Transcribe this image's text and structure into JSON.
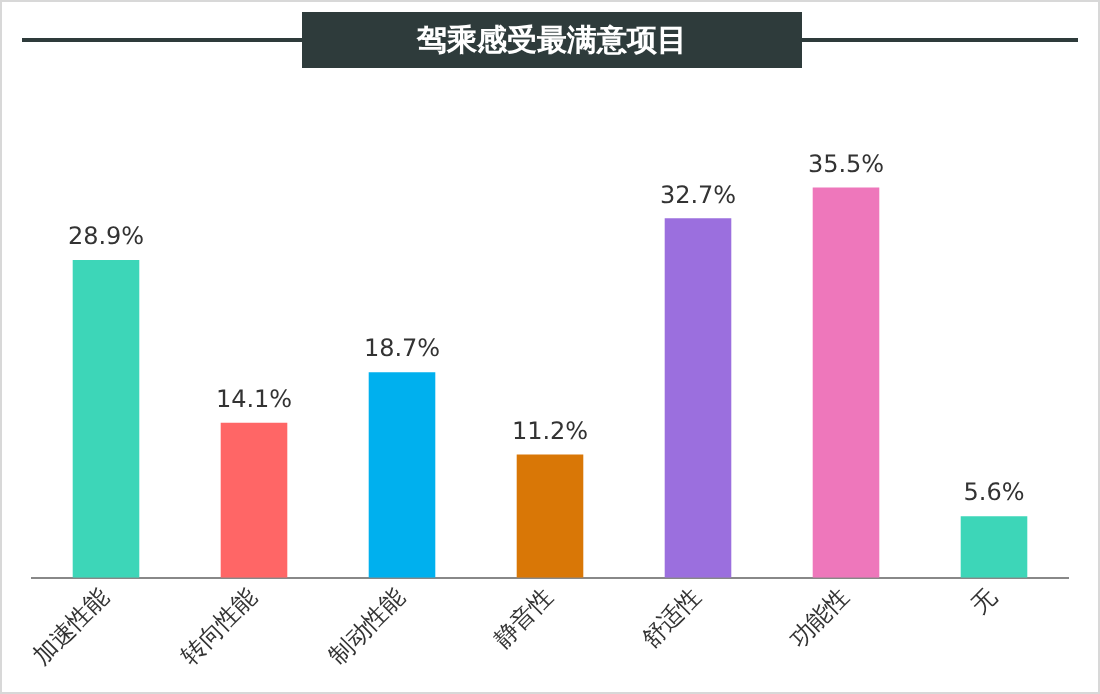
{
  "chart_data": {
    "type": "bar",
    "title": "驾乘感受最满意项目",
    "categories": [
      "加速性能",
      "转向性能",
      "制动性能",
      "静音性",
      "舒适性",
      "功能性",
      "无"
    ],
    "values": [
      28.9,
      14.1,
      18.7,
      11.2,
      32.7,
      35.5,
      5.6
    ],
    "value_labels": [
      "28.9%",
      "14.1%",
      "18.7%",
      "11.2%",
      "32.7%",
      "35.5%",
      "5.6%"
    ],
    "colors": [
      "#3dd6b8",
      "#ff6666",
      "#00b0ee",
      "#d97706",
      "#9b6fde",
      "#ee77bb",
      "#3dd6b8"
    ],
    "grid": false,
    "legend": false
  }
}
